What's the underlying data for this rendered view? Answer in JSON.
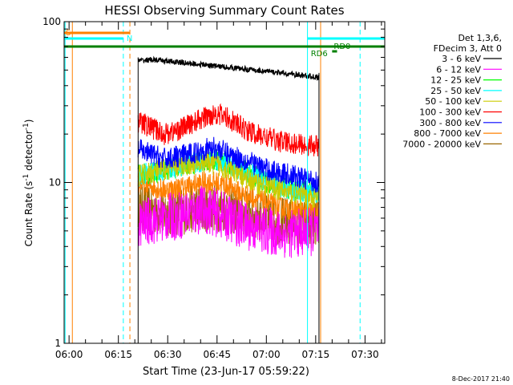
{
  "chart_data": {
    "type": "line",
    "title": "HESSI Observing Summary Count Rates",
    "xlabel": "Start Time (23-Jun-17 05:59:22)",
    "ylabel": "Count Rate (s⁻¹ detector⁻¹)",
    "ylabel_main": "Count Rate (s",
    "ylabel_sup1": "-1",
    "ylabel_mid": " detector",
    "ylabel_sup2": "-1",
    "ylabel_end": ")",
    "yscale": "log",
    "ylim": [
      1,
      100
    ],
    "xlim_minutes": [
      -1.5,
      96
    ],
    "x_ticks": [
      "06:00",
      "06:15",
      "06:30",
      "06:45",
      "07:00",
      "07:15",
      "07:30"
    ],
    "y_ticks": [
      "1",
      "10",
      "100"
    ],
    "legend_header": [
      "Det 1,3,6,",
      "FDecim 3, Att 0"
    ],
    "legend_position": "right",
    "timestamp": "8-Dec-2017 21:40",
    "flags": [
      {
        "label": "S",
        "color": "#ff8000"
      },
      {
        "label": "N",
        "color": "#00ffff"
      },
      {
        "label": "RD0",
        "color": "#008000"
      },
      {
        "label": "RD6",
        "color": "#008000"
      }
    ],
    "data_window_minutes": [
      21,
      76
    ],
    "series": [
      {
        "name": "3 - 6 keV",
        "color": "#000000",
        "values": [
          57,
          58,
          57,
          56,
          55,
          54,
          53,
          52,
          51,
          50,
          49,
          48,
          47,
          46,
          45
        ]
      },
      {
        "name": "6 - 12 keV",
        "color": "#ff00ff",
        "values": [
          5.5,
          5.8,
          6.0,
          6.2,
          6.5,
          6.8,
          6.5,
          6.0,
          5.5,
          5.2,
          5.0,
          4.8,
          4.8,
          4.9,
          5.0
        ]
      },
      {
        "name": "12 - 25 keV",
        "color": "#00ff00",
        "values": [
          11,
          11.5,
          12,
          12.5,
          13,
          13.5,
          14,
          13,
          12,
          11,
          10,
          9.5,
          9,
          8.8,
          8.5
        ]
      },
      {
        "name": "25 - 50 keV",
        "color": "#00ffff",
        "values": [
          11,
          11.5,
          12,
          12.5,
          13,
          13.5,
          14,
          13,
          12,
          11,
          10,
          9.5,
          9,
          8.8,
          8.5
        ]
      },
      {
        "name": "50 - 100 keV",
        "color": "#cccc00",
        "values": [
          11,
          11.5,
          12,
          12.5,
          13,
          13.5,
          13,
          12,
          11,
          10,
          9.5,
          9,
          8.5,
          8.2,
          8
        ]
      },
      {
        "name": "100 - 300 keV",
        "color": "#ff0000",
        "values": [
          24,
          22,
          20,
          21,
          23,
          25,
          27,
          25,
          22,
          20,
          19,
          18,
          17.5,
          17,
          17
        ]
      },
      {
        "name": "300 - 800 keV",
        "color": "#0000ff",
        "values": [
          16,
          15,
          14,
          14.5,
          15,
          16,
          16.5,
          15,
          14,
          13,
          12,
          11.5,
          11,
          10.5,
          10
        ]
      },
      {
        "name": "800 - 7000 keV",
        "color": "#ff8000",
        "values": [
          10,
          9.5,
          9,
          9.2,
          9.5,
          10,
          10,
          9.5,
          8.5,
          8,
          7.5,
          7,
          6.8,
          6.6,
          6.5
        ]
      },
      {
        "name": "7000 - 20000 keV",
        "color": "#996600",
        "values": [
          7,
          6.8,
          6.5,
          6.6,
          6.8,
          7,
          7,
          6.8,
          6.5,
          6.3,
          6,
          5.8,
          5.6,
          5.5,
          5.5
        ]
      }
    ]
  }
}
